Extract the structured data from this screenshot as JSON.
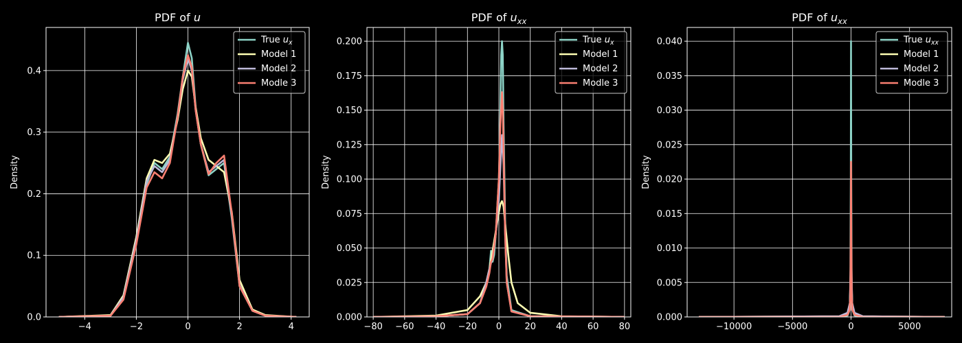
{
  "chart_data": [
    {
      "type": "line",
      "title": "PDF of u",
      "title_math": {
        "base": "u",
        "sub": ""
      },
      "xlabel": "",
      "ylabel": "Density",
      "xlim": [
        -5.5,
        4.7
      ],
      "ylim": [
        0,
        0.47
      ],
      "xticks": [
        -4,
        -2,
        0,
        2,
        4
      ],
      "yticks": [
        0.0,
        0.1,
        0.2,
        0.3,
        0.4
      ],
      "ytick_format": 1,
      "grid": true,
      "legend": {
        "position": "top-right",
        "entries": [
          "True u_x",
          "Model 1",
          "Model 2",
          "Modle 3"
        ]
      },
      "series": [
        {
          "name": "True u_x",
          "color": "#8dd3c7",
          "x": [
            -5,
            -3,
            -2.5,
            -2,
            -1.6,
            -1.3,
            -1,
            -0.7,
            -0.4,
            -0.2,
            0,
            0.15,
            0.3,
            0.5,
            0.8,
            1.1,
            1.4,
            1.7,
            2,
            2.5,
            3,
            4.2
          ],
          "y": [
            0,
            0.002,
            0.03,
            0.12,
            0.215,
            0.25,
            0.24,
            0.26,
            0.33,
            0.39,
            0.445,
            0.42,
            0.34,
            0.28,
            0.23,
            0.24,
            0.25,
            0.16,
            0.05,
            0.01,
            0.002,
            0
          ]
        },
        {
          "name": "Model 1",
          "color": "#ffffb3",
          "x": [
            -5,
            -3,
            -2.5,
            -2,
            -1.6,
            -1.3,
            -1,
            -0.7,
            -0.4,
            -0.2,
            0,
            0.15,
            0.3,
            0.5,
            0.8,
            1.1,
            1.4,
            1.7,
            2,
            2.5,
            3,
            4.2
          ],
          "y": [
            0,
            0.003,
            0.035,
            0.13,
            0.225,
            0.255,
            0.25,
            0.265,
            0.32,
            0.37,
            0.4,
            0.39,
            0.34,
            0.29,
            0.255,
            0.245,
            0.235,
            0.17,
            0.06,
            0.012,
            0.003,
            0
          ]
        },
        {
          "name": "Model 2",
          "color": "#bebada",
          "x": [
            -5,
            -3,
            -2.5,
            -2,
            -1.6,
            -1.3,
            -1,
            -0.7,
            -0.4,
            -0.2,
            0,
            0.15,
            0.3,
            0.5,
            0.8,
            1.1,
            1.4,
            1.7,
            2,
            2.5,
            3,
            4.2
          ],
          "y": [
            0,
            0.002,
            0.032,
            0.125,
            0.22,
            0.245,
            0.235,
            0.255,
            0.325,
            0.385,
            0.42,
            0.4,
            0.335,
            0.28,
            0.235,
            0.245,
            0.255,
            0.165,
            0.052,
            0.01,
            0.002,
            0
          ]
        },
        {
          "name": "Modle 3",
          "color": "#fb8072",
          "x": [
            -5,
            -3,
            -2.5,
            -2,
            -1.6,
            -1.3,
            -1,
            -0.7,
            -0.4,
            -0.2,
            0,
            0.15,
            0.3,
            0.5,
            0.8,
            1.1,
            1.4,
            1.7,
            2,
            2.5,
            3,
            4.2
          ],
          "y": [
            0,
            0.002,
            0.028,
            0.118,
            0.21,
            0.235,
            0.225,
            0.25,
            0.325,
            0.39,
            0.425,
            0.405,
            0.335,
            0.28,
            0.232,
            0.25,
            0.262,
            0.168,
            0.05,
            0.01,
            0.002,
            0
          ]
        }
      ]
    },
    {
      "type": "line",
      "title": "PDF of u_xx",
      "title_math": {
        "base": "u",
        "sub": "xx"
      },
      "xlabel": "",
      "ylabel": "Density",
      "xlim": [
        -84,
        84
      ],
      "ylim": [
        0,
        0.21
      ],
      "xticks": [
        -80,
        -60,
        -40,
        -20,
        0,
        20,
        40,
        60,
        80
      ],
      "yticks": [
        0.0,
        0.025,
        0.05,
        0.075,
        0.1,
        0.125,
        0.15,
        0.175,
        0.2
      ],
      "ytick_format": 3,
      "grid": true,
      "legend": {
        "position": "top-right",
        "entries": [
          "True u_x",
          "Model 1",
          "Model 2",
          "Modle 3"
        ]
      },
      "series": [
        {
          "name": "True u_x",
          "color": "#8dd3c7",
          "x": [
            -80,
            -40,
            -20,
            -12,
            -8,
            -6,
            -5,
            -4,
            -3,
            -2,
            -1,
            0,
            1,
            1.5,
            2,
            2.5,
            3,
            4,
            5,
            8,
            20,
            80
          ],
          "y": [
            0,
            0.0005,
            0.002,
            0.01,
            0.025,
            0.035,
            0.048,
            0.04,
            0.045,
            0.06,
            0.08,
            0.1,
            0.15,
            0.19,
            0.2,
            0.19,
            0.14,
            0.07,
            0.03,
            0.005,
            0.0005,
            0
          ]
        },
        {
          "name": "Model 1",
          "color": "#ffffb3",
          "x": [
            -80,
            -40,
            -20,
            -12,
            -8,
            -6,
            -4,
            -2,
            0,
            1,
            2,
            3,
            4,
            6,
            8,
            12,
            20,
            40,
            80
          ],
          "y": [
            0,
            0.001,
            0.005,
            0.015,
            0.025,
            0.035,
            0.048,
            0.062,
            0.076,
            0.082,
            0.084,
            0.08,
            0.068,
            0.045,
            0.025,
            0.01,
            0.003,
            0.0005,
            0
          ]
        },
        {
          "name": "Model 2",
          "color": "#bebada",
          "x": [
            -80,
            -40,
            -20,
            -12,
            -8,
            -6,
            -4,
            -2,
            0,
            1,
            2,
            3,
            4,
            5,
            8,
            20,
            80
          ],
          "y": [
            0,
            0.0005,
            0.002,
            0.01,
            0.025,
            0.035,
            0.043,
            0.06,
            0.085,
            0.11,
            0.132,
            0.11,
            0.06,
            0.025,
            0.004,
            0.0005,
            0
          ]
        },
        {
          "name": "Modle 3",
          "color": "#fb8072",
          "x": [
            -80,
            -40,
            -20,
            -12,
            -8,
            -6,
            -5,
            -4,
            -2,
            0,
            1,
            2,
            2.5,
            3,
            4,
            5,
            8,
            20,
            80
          ],
          "y": [
            0,
            0.0005,
            0.002,
            0.01,
            0.022,
            0.032,
            0.04,
            0.042,
            0.06,
            0.1,
            0.14,
            0.163,
            0.15,
            0.12,
            0.06,
            0.025,
            0.004,
            0.0005,
            0
          ]
        }
      ]
    },
    {
      "type": "line",
      "title": "PDF of u_xx",
      "title_math": {
        "base": "u",
        "sub": "xx"
      },
      "xlabel": "",
      "ylabel": "Density",
      "xlim": [
        -14000,
        8600
      ],
      "ylim": [
        0,
        0.042
      ],
      "xticks": [
        -10000,
        -5000,
        0,
        5000
      ],
      "yticks": [
        0.0,
        0.005,
        0.01,
        0.015,
        0.02,
        0.025,
        0.03,
        0.035,
        0.04
      ],
      "ytick_format": 3,
      "grid": true,
      "legend": {
        "position": "top-right",
        "entries": [
          "True u_xx",
          "Model 1",
          "Model 2",
          "Modle 3"
        ]
      },
      "series": [
        {
          "name": "True u_xx",
          "color": "#8dd3c7",
          "x": [
            -13000,
            -1000,
            -300,
            -120,
            -60,
            -20,
            0,
            20,
            60,
            120,
            300,
            1000,
            8000
          ],
          "y": [
            0,
            0,
            0.0002,
            0.001,
            0.004,
            0.02,
            0.04,
            0.02,
            0.004,
            0.001,
            0.0002,
            0,
            0
          ]
        },
        {
          "name": "Model 1",
          "color": "#ffffb3",
          "x": [
            -13000,
            -1000,
            -300,
            -100,
            -40,
            0,
            40,
            100,
            300,
            1000,
            8000
          ],
          "y": [
            0,
            0.0001,
            0.0005,
            0.002,
            0.006,
            0.01,
            0.006,
            0.002,
            0.0005,
            0.0001,
            0
          ]
        },
        {
          "name": "Model 2",
          "color": "#bebada",
          "x": [
            -13000,
            -1000,
            -300,
            -100,
            -40,
            0,
            40,
            100,
            300,
            1000,
            8000
          ],
          "y": [
            0,
            0.0001,
            0.0006,
            0.002,
            0.007,
            0.012,
            0.007,
            0.002,
            0.0006,
            0.0001,
            0
          ]
        },
        {
          "name": "Modle 3",
          "color": "#fb8072",
          "x": [
            -13000,
            -1000,
            -300,
            -120,
            -60,
            -20,
            0,
            20,
            60,
            120,
            300,
            1000,
            8000
          ],
          "y": [
            0,
            0,
            0.0003,
            0.001,
            0.003,
            0.012,
            0.0225,
            0.012,
            0.003,
            0.001,
            0.0003,
            0,
            0
          ]
        }
      ]
    }
  ]
}
